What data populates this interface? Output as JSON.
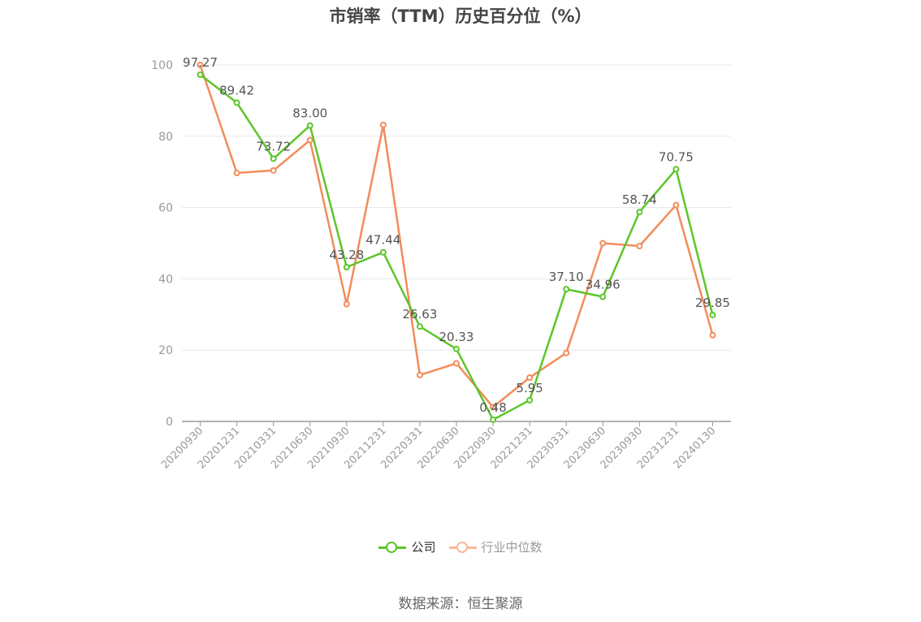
{
  "chart_data": {
    "type": "line",
    "title": "市销率（TTM）历史百分位（%）",
    "categories": [
      "20200930",
      "20201231",
      "20210331",
      "20210630",
      "20210930",
      "20211231",
      "20220331",
      "20220630",
      "20220930",
      "20221231",
      "20230331",
      "20230630",
      "20230930",
      "20231231",
      "20240130"
    ],
    "ylim": [
      0,
      100
    ],
    "yticks": [
      0,
      20,
      40,
      60,
      80,
      100
    ],
    "grid": true,
    "legend_position": "bottom",
    "series": [
      {
        "name": "公司",
        "color": "#5cc62a",
        "show_labels": true,
        "values": [
          97.27,
          89.42,
          73.72,
          83.0,
          43.28,
          47.44,
          26.63,
          20.33,
          0.48,
          5.95,
          37.1,
          34.96,
          58.74,
          70.75,
          29.85
        ],
        "labels": [
          "97.27",
          "89.42",
          "73.72",
          "83.00",
          "43.28",
          "47.44",
          "26.63",
          "20.33",
          "0.48",
          "5.95",
          "37.10",
          "34.96",
          "58.74",
          "70.75",
          "29.85"
        ]
      },
      {
        "name": "行业中位数",
        "color": "#f28c5a",
        "show_labels": false,
        "values": [
          100.0,
          69.7,
          70.4,
          78.9,
          32.9,
          83.2,
          13.0,
          16.3,
          4.0,
          12.3,
          19.2,
          50.0,
          49.2,
          60.7,
          24.2
        ]
      }
    ]
  },
  "legend": {
    "items": [
      {
        "label": "公司",
        "color": "#5cc62a",
        "text_color": "#333333"
      },
      {
        "label": "行业中位数",
        "color": "#f9b89a",
        "text_color": "#999999"
      }
    ]
  },
  "source": "数据来源：恒生聚源"
}
